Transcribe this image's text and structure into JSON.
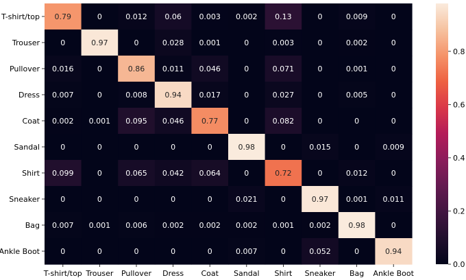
{
  "chart_data": {
    "type": "heatmap",
    "row_labels": [
      "T-shirt/top",
      "Trouser",
      "Pullover",
      "Dress",
      "Coat",
      "Sandal",
      "Shirt",
      "Sneaker",
      "Bag",
      "Ankle Boot"
    ],
    "col_labels": [
      "T-shirt/top",
      "Trouser",
      "Pullover",
      "Dress",
      "Coat",
      "Sandal",
      "Shirt",
      "Sneaker",
      "Bag",
      "Ankle Boot"
    ],
    "values": [
      [
        0.79,
        0,
        0.012,
        0.06,
        0.003,
        0.002,
        0.13,
        0,
        0.009,
        0
      ],
      [
        0,
        0.97,
        0,
        0.028,
        0.001,
        0,
        0.003,
        0,
        0.002,
        0
      ],
      [
        0.016,
        0,
        0.86,
        0.011,
        0.046,
        0,
        0.071,
        0,
        0.001,
        0
      ],
      [
        0.007,
        0,
        0.008,
        0.94,
        0.017,
        0,
        0.027,
        0,
        0.005,
        0
      ],
      [
        0.002,
        0.001,
        0.095,
        0.046,
        0.77,
        0,
        0.082,
        0,
        0,
        0
      ],
      [
        0,
        0,
        0,
        0,
        0,
        0.98,
        0,
        0.015,
        0,
        0.009
      ],
      [
        0.099,
        0,
        0.065,
        0.042,
        0.064,
        0,
        0.72,
        0,
        0.012,
        0
      ],
      [
        0,
        0,
        0,
        0,
        0,
        0.021,
        0,
        0.97,
        0.001,
        0.011
      ],
      [
        0.007,
        0.001,
        0.006,
        0.002,
        0.002,
        0.002,
        0.001,
        0.002,
        0.98,
        0
      ],
      [
        0,
        0,
        0,
        0,
        0,
        0.007,
        0,
        0.052,
        0,
        0.94
      ]
    ],
    "colorbar": {
      "min": 0.0,
      "max": 0.98,
      "ticks": [
        0.0,
        0.2,
        0.4,
        0.6,
        0.8
      ],
      "tick_labels": [
        "0.0",
        "0.2",
        "0.4",
        "0.6",
        "0.8"
      ],
      "colormap": "rocket"
    }
  }
}
